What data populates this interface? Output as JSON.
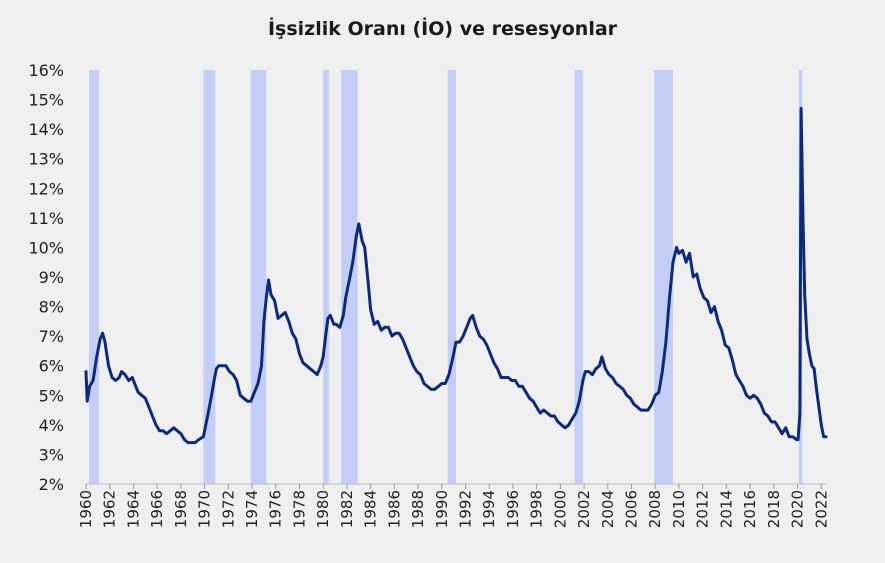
{
  "chart_data": {
    "type": "line",
    "title": "İşsizlik Oranı (İO) ve resesyonlar",
    "xlabel": "",
    "ylabel": "",
    "xlim": [
      1960.0,
      2022.4
    ],
    "ylim": [
      2,
      16
    ],
    "y_tick_labels": [
      "2%",
      "3%",
      "4%",
      "5%",
      "6%",
      "7%",
      "8%",
      "9%",
      "10%",
      "11%",
      "12%",
      "13%",
      "14%",
      "15%",
      "16%"
    ],
    "x_tick_labels": [
      "1960",
      "1962",
      "1964",
      "1966",
      "1968",
      "1970",
      "1972",
      "1974",
      "1976",
      "1978",
      "1980",
      "1982",
      "1984",
      "1986",
      "1988",
      "1990",
      "1992",
      "1994",
      "1996",
      "1998",
      "2000",
      "2002",
      "2004",
      "2006",
      "2008",
      "2010",
      "2012",
      "2014",
      "2016",
      "2018",
      "2020",
      "2022"
    ],
    "recessions": [
      {
        "start": 1960.25,
        "end": 1961.1
      },
      {
        "start": 1969.9,
        "end": 1970.9
      },
      {
        "start": 1973.9,
        "end": 1975.2
      },
      {
        "start": 1980.0,
        "end": 1980.5
      },
      {
        "start": 1981.5,
        "end": 1982.9
      },
      {
        "start": 1990.5,
        "end": 1991.2
      },
      {
        "start": 2001.2,
        "end": 2001.9
      },
      {
        "start": 2007.9,
        "end": 2009.5
      },
      {
        "start": 2020.1,
        "end": 2020.4
      }
    ],
    "recession_color": "#c3cdf5",
    "line_color": "#0d2a7a",
    "series": [
      {
        "points": [
          [
            1960.0,
            5.8
          ],
          [
            1960.1,
            4.8
          ],
          [
            1960.3,
            5.3
          ],
          [
            1960.6,
            5.5
          ],
          [
            1960.9,
            6.3
          ],
          [
            1961.2,
            6.9
          ],
          [
            1961.4,
            7.1
          ],
          [
            1961.6,
            6.8
          ],
          [
            1961.9,
            6.0
          ],
          [
            1962.2,
            5.6
          ],
          [
            1962.5,
            5.5
          ],
          [
            1962.8,
            5.6
          ],
          [
            1963.0,
            5.8
          ],
          [
            1963.3,
            5.7
          ],
          [
            1963.6,
            5.5
          ],
          [
            1963.9,
            5.6
          ],
          [
            1964.1,
            5.4
          ],
          [
            1964.4,
            5.1
          ],
          [
            1964.7,
            5.0
          ],
          [
            1965.0,
            4.9
          ],
          [
            1965.3,
            4.6
          ],
          [
            1965.6,
            4.3
          ],
          [
            1965.9,
            4.0
          ],
          [
            1966.2,
            3.8
          ],
          [
            1966.5,
            3.8
          ],
          [
            1966.8,
            3.7
          ],
          [
            1967.1,
            3.8
          ],
          [
            1967.4,
            3.9
          ],
          [
            1967.7,
            3.8
          ],
          [
            1968.0,
            3.7
          ],
          [
            1968.3,
            3.5
          ],
          [
            1968.6,
            3.4
          ],
          [
            1968.9,
            3.4
          ],
          [
            1969.2,
            3.4
          ],
          [
            1969.5,
            3.5
          ],
          [
            1969.9,
            3.6
          ],
          [
            1970.2,
            4.2
          ],
          [
            1970.5,
            4.8
          ],
          [
            1970.8,
            5.5
          ],
          [
            1971.0,
            5.9
          ],
          [
            1971.2,
            6.0
          ],
          [
            1971.5,
            6.0
          ],
          [
            1971.8,
            6.0
          ],
          [
            1972.1,
            5.8
          ],
          [
            1972.4,
            5.7
          ],
          [
            1972.7,
            5.5
          ],
          [
            1973.0,
            5.0
          ],
          [
            1973.3,
            4.9
          ],
          [
            1973.6,
            4.8
          ],
          [
            1973.9,
            4.8
          ],
          [
            1974.2,
            5.1
          ],
          [
            1974.5,
            5.4
          ],
          [
            1974.8,
            6.0
          ],
          [
            1975.0,
            7.5
          ],
          [
            1975.2,
            8.3
          ],
          [
            1975.4,
            8.9
          ],
          [
            1975.6,
            8.4
          ],
          [
            1975.9,
            8.2
          ],
          [
            1976.2,
            7.6
          ],
          [
            1976.5,
            7.7
          ],
          [
            1976.8,
            7.8
          ],
          [
            1977.1,
            7.5
          ],
          [
            1977.4,
            7.1
          ],
          [
            1977.7,
            6.9
          ],
          [
            1978.0,
            6.4
          ],
          [
            1978.3,
            6.1
          ],
          [
            1978.6,
            6.0
          ],
          [
            1978.9,
            5.9
          ],
          [
            1979.2,
            5.8
          ],
          [
            1979.5,
            5.7
          ],
          [
            1979.8,
            6.0
          ],
          [
            1980.0,
            6.3
          ],
          [
            1980.2,
            7.0
          ],
          [
            1980.4,
            7.6
          ],
          [
            1980.6,
            7.7
          ],
          [
            1980.9,
            7.4
          ],
          [
            1981.1,
            7.4
          ],
          [
            1981.4,
            7.3
          ],
          [
            1981.7,
            7.7
          ],
          [
            1981.9,
            8.3
          ],
          [
            1982.2,
            8.9
          ],
          [
            1982.5,
            9.5
          ],
          [
            1982.8,
            10.4
          ],
          [
            1983.0,
            10.8
          ],
          [
            1983.3,
            10.2
          ],
          [
            1983.5,
            10.0
          ],
          [
            1983.8,
            8.8
          ],
          [
            1984.0,
            7.9
          ],
          [
            1984.3,
            7.4
          ],
          [
            1984.6,
            7.5
          ],
          [
            1984.9,
            7.2
          ],
          [
            1985.2,
            7.3
          ],
          [
            1985.5,
            7.3
          ],
          [
            1985.8,
            7.0
          ],
          [
            1986.1,
            7.1
          ],
          [
            1986.4,
            7.1
          ],
          [
            1986.7,
            6.9
          ],
          [
            1987.0,
            6.6
          ],
          [
            1987.3,
            6.3
          ],
          [
            1987.6,
            6.0
          ],
          [
            1987.9,
            5.8
          ],
          [
            1988.2,
            5.7
          ],
          [
            1988.5,
            5.4
          ],
          [
            1988.8,
            5.3
          ],
          [
            1989.1,
            5.2
          ],
          [
            1989.4,
            5.2
          ],
          [
            1989.7,
            5.3
          ],
          [
            1990.0,
            5.4
          ],
          [
            1990.3,
            5.4
          ],
          [
            1990.6,
            5.7
          ],
          [
            1990.9,
            6.2
          ],
          [
            1991.2,
            6.8
          ],
          [
            1991.5,
            6.8
          ],
          [
            1991.8,
            7.0
          ],
          [
            1992.1,
            7.3
          ],
          [
            1992.4,
            7.6
          ],
          [
            1992.6,
            7.7
          ],
          [
            1992.9,
            7.3
          ],
          [
            1993.2,
            7.0
          ],
          [
            1993.5,
            6.9
          ],
          [
            1993.8,
            6.7
          ],
          [
            1994.1,
            6.4
          ],
          [
            1994.4,
            6.1
          ],
          [
            1994.7,
            5.9
          ],
          [
            1995.0,
            5.6
          ],
          [
            1995.3,
            5.6
          ],
          [
            1995.6,
            5.6
          ],
          [
            1995.9,
            5.5
          ],
          [
            1996.2,
            5.5
          ],
          [
            1996.5,
            5.3
          ],
          [
            1996.8,
            5.3
          ],
          [
            1997.1,
            5.1
          ],
          [
            1997.4,
            4.9
          ],
          [
            1997.7,
            4.8
          ],
          [
            1998.0,
            4.6
          ],
          [
            1998.3,
            4.4
          ],
          [
            1998.6,
            4.5
          ],
          [
            1998.9,
            4.4
          ],
          [
            1999.2,
            4.3
          ],
          [
            1999.5,
            4.3
          ],
          [
            1999.8,
            4.1
          ],
          [
            2000.1,
            4.0
          ],
          [
            2000.4,
            3.9
          ],
          [
            2000.7,
            4.0
          ],
          [
            2001.0,
            4.2
          ],
          [
            2001.3,
            4.4
          ],
          [
            2001.6,
            4.8
          ],
          [
            2001.9,
            5.5
          ],
          [
            2002.1,
            5.8
          ],
          [
            2002.4,
            5.8
          ],
          [
            2002.7,
            5.7
          ],
          [
            2003.0,
            5.9
          ],
          [
            2003.3,
            6.0
          ],
          [
            2003.5,
            6.3
          ],
          [
            2003.8,
            5.9
          ],
          [
            2004.1,
            5.7
          ],
          [
            2004.4,
            5.6
          ],
          [
            2004.7,
            5.4
          ],
          [
            2005.0,
            5.3
          ],
          [
            2005.3,
            5.2
          ],
          [
            2005.6,
            5.0
          ],
          [
            2005.9,
            4.9
          ],
          [
            2006.2,
            4.7
          ],
          [
            2006.5,
            4.6
          ],
          [
            2006.8,
            4.5
          ],
          [
            2007.1,
            4.5
          ],
          [
            2007.4,
            4.5
          ],
          [
            2007.7,
            4.7
          ],
          [
            2008.0,
            5.0
          ],
          [
            2008.3,
            5.1
          ],
          [
            2008.6,
            5.8
          ],
          [
            2008.9,
            6.8
          ],
          [
            2009.2,
            8.3
          ],
          [
            2009.5,
            9.5
          ],
          [
            2009.8,
            10.0
          ],
          [
            2010.0,
            9.8
          ],
          [
            2010.3,
            9.9
          ],
          [
            2010.6,
            9.5
          ],
          [
            2010.9,
            9.8
          ],
          [
            2011.2,
            9.0
          ],
          [
            2011.5,
            9.1
          ],
          [
            2011.8,
            8.6
          ],
          [
            2012.1,
            8.3
          ],
          [
            2012.4,
            8.2
          ],
          [
            2012.7,
            7.8
          ],
          [
            2013.0,
            8.0
          ],
          [
            2013.3,
            7.5
          ],
          [
            2013.6,
            7.2
          ],
          [
            2013.9,
            6.7
          ],
          [
            2014.2,
            6.6
          ],
          [
            2014.5,
            6.2
          ],
          [
            2014.8,
            5.7
          ],
          [
            2015.1,
            5.5
          ],
          [
            2015.4,
            5.3
          ],
          [
            2015.7,
            5.0
          ],
          [
            2016.0,
            4.9
          ],
          [
            2016.3,
            5.0
          ],
          [
            2016.6,
            4.9
          ],
          [
            2016.9,
            4.7
          ],
          [
            2017.2,
            4.4
          ],
          [
            2017.5,
            4.3
          ],
          [
            2017.8,
            4.1
          ],
          [
            2018.1,
            4.1
          ],
          [
            2018.4,
            3.9
          ],
          [
            2018.7,
            3.7
          ],
          [
            2019.0,
            3.9
          ],
          [
            2019.3,
            3.6
          ],
          [
            2019.6,
            3.6
          ],
          [
            2019.9,
            3.5
          ],
          [
            2020.05,
            3.5
          ],
          [
            2020.2,
            4.4
          ],
          [
            2020.3,
            14.7
          ],
          [
            2020.45,
            11.1
          ],
          [
            2020.6,
            8.4
          ],
          [
            2020.8,
            6.9
          ],
          [
            2021.0,
            6.4
          ],
          [
            2021.2,
            6.0
          ],
          [
            2021.4,
            5.9
          ],
          [
            2021.6,
            5.2
          ],
          [
            2021.8,
            4.6
          ],
          [
            2022.0,
            4.0
          ],
          [
            2022.2,
            3.6
          ],
          [
            2022.4,
            3.6
          ]
        ]
      }
    ]
  }
}
